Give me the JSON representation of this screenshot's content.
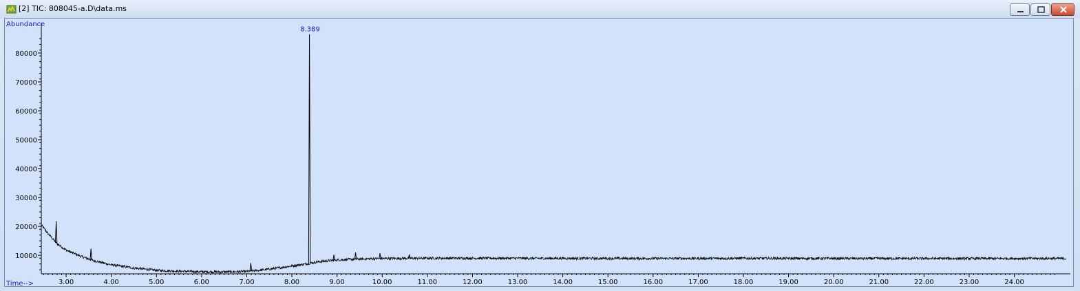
{
  "window": {
    "title": "[2] TIC: 808045-a.D\\data.ms",
    "icon": "chromatogram-app-icon",
    "controls": {
      "minimize_icon": "minimize-icon",
      "maximize_icon": "maximize-icon",
      "close_icon": "close-icon"
    }
  },
  "colors": {
    "plot_bg": "#d3e2fb",
    "trace": "#000000",
    "label_blue": "#1a1acc",
    "close_red": "#c94a2f"
  },
  "chart_data": {
    "type": "line",
    "ylabel": "Abundance",
    "xlabel": "Time-->",
    "xlim": [
      2.45,
      25.15
    ],
    "ylim": [
      3600,
      90000
    ],
    "x_ticks": [
      "3.00",
      "4.00",
      "5.00",
      "6.00",
      "7.00",
      "8.00",
      "9.00",
      "10.00",
      "11.00",
      "12.00",
      "13.00",
      "14.00",
      "15.00",
      "16.00",
      "17.00",
      "18.00",
      "19.00",
      "20.00",
      "21.00",
      "22.00",
      "23.00",
      "24.00"
    ],
    "y_ticks": [
      "10000",
      "20000",
      "30000",
      "40000",
      "50000",
      "60000",
      "70000",
      "80000"
    ],
    "peak_label": "8.389",
    "baseline": {
      "x": [
        2.45,
        2.6,
        2.8,
        3.0,
        3.3,
        3.6,
        4.0,
        4.5,
        5.0,
        5.5,
        6.0,
        6.5,
        7.0,
        7.5,
        8.0,
        8.3,
        8.6,
        9.0,
        9.5,
        10.0,
        11.0,
        12.0,
        14.0,
        16.0,
        18.0,
        20.0,
        22.0,
        24.0,
        25.15
      ],
      "y": [
        20500,
        17500,
        14000,
        11800,
        9800,
        8200,
        6700,
        5600,
        4800,
        4500,
        4300,
        4250,
        4400,
        5200,
        6300,
        7000,
        7800,
        8400,
        8700,
        8900,
        9000,
        9000,
        8950,
        8900,
        8950,
        8900,
        8900,
        8900,
        8900
      ]
    },
    "peaks": [
      {
        "x": 2.78,
        "y": 21800
      },
      {
        "x": 3.55,
        "y": 12300
      },
      {
        "x": 7.09,
        "y": 7400
      },
      {
        "x": 8.389,
        "y": 86500
      },
      {
        "x": 8.93,
        "y": 10200
      },
      {
        "x": 9.41,
        "y": 11000
      },
      {
        "x": 9.95,
        "y": 10700
      },
      {
        "x": 10.6,
        "y": 10300
      }
    ],
    "noise_amplitude": 450
  }
}
